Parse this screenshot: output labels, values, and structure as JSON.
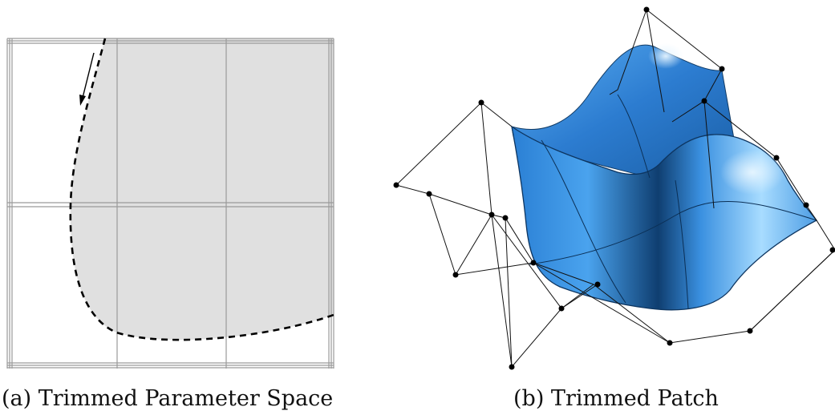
{
  "figure": {
    "caption_a": "(a) Trimmed Parameter Space",
    "caption_b": "(b) Trimmed Patch"
  },
  "colors": {
    "trimmed_region": "#e0e0e0",
    "grid_line": "#9a9a9a",
    "trim_curve": "#000000",
    "surface_light": "#a9dcff",
    "surface_mid": "#3f97e6",
    "surface_dark": "#0e3f73",
    "control_net": "#111111"
  },
  "icons": {
    "trim_direction": "arrow-down-left-icon"
  }
}
